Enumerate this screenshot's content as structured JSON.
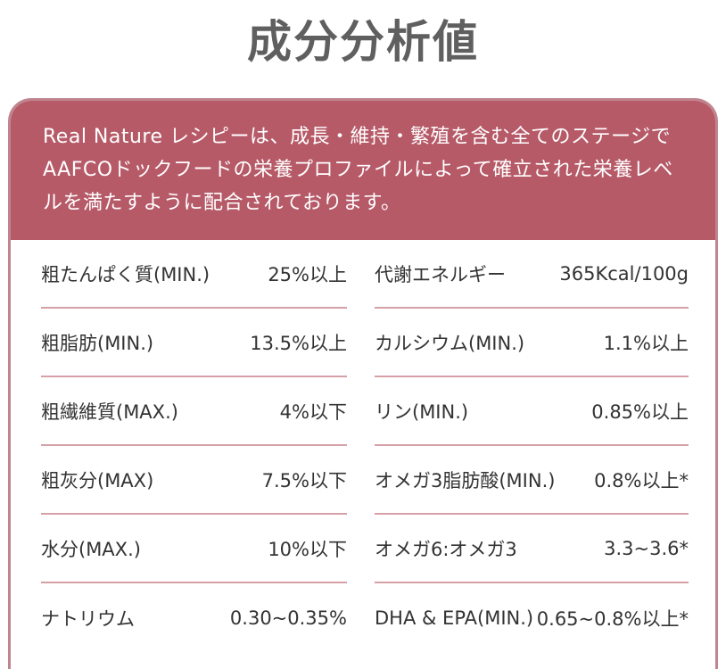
{
  "title": "成分分析値",
  "intro": "Real Nature レシピーは、成長・維持・繁殖を含む全てのステージで AAFCOドックフードの栄養プロファイルによって確立された栄養レベルを満たすように配合されております。",
  "left_column": [
    {
      "label": "粗たんぱく質(MIN.)",
      "value": "25%以上"
    },
    {
      "label": "粗脂肪(MIN.)",
      "value": "13.5%以上"
    },
    {
      "label": "粗繊維質(MAX.)",
      "value": "4%以下"
    },
    {
      "label": "粗灰分(MAX)",
      "value": "7.5%以下"
    },
    {
      "label": "水分(MAX.)",
      "value": "10%以下"
    },
    {
      "label": "ナトリウム",
      "value": "0.30~0.35%"
    }
  ],
  "right_column": [
    {
      "label": "代謝エネルギー",
      "value": "365Kcal/100g"
    },
    {
      "label": "カルシウム(MIN.)",
      "value": "1.1%以上"
    },
    {
      "label": "リン(MIN.)",
      "value": "0.85%以上"
    },
    {
      "label": "オメガ3脂肪酸(MIN.)",
      "value": "0.8%以上*"
    },
    {
      "label": "オメガ6:オメガ3",
      "value": "3.3~3.6*"
    },
    {
      "label": "DHA & EPA(MIN.)",
      "value": "0.65~0.8%以上*"
    }
  ],
  "colors": {
    "header_bg": "#b65a68",
    "border": "#c0848e",
    "divider": "#d6a0a8",
    "title": "#5f5f5f"
  }
}
